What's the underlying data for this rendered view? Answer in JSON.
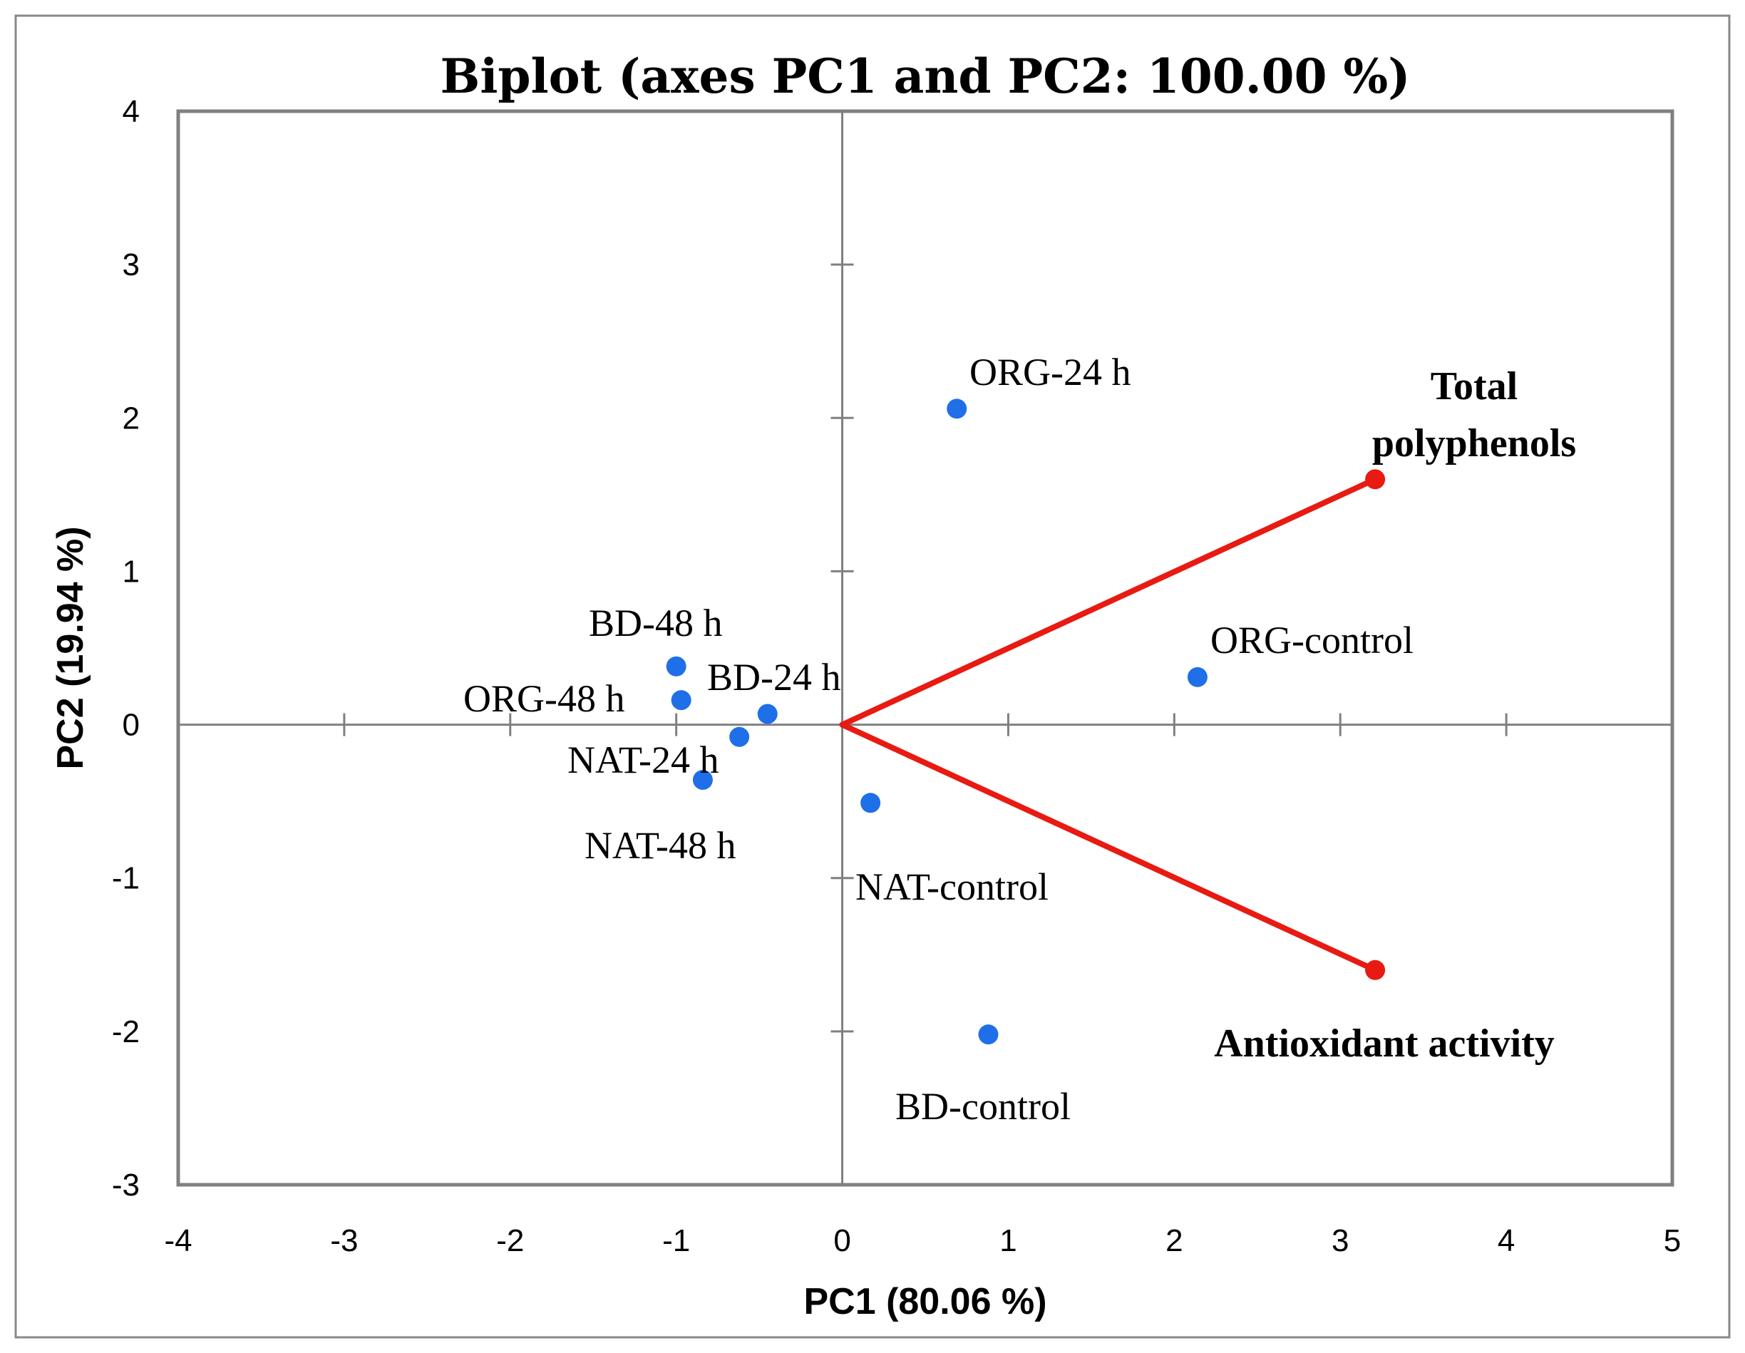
{
  "chart_data": {
    "type": "scatter",
    "title": "Biplot (axes PC1 and PC2: 100.00 %)",
    "xlabel": "PC1 (80.06 %)",
    "ylabel": "PC2 (19.94 %)",
    "xlim": [
      -4,
      5
    ],
    "ylim": [
      -3,
      4
    ],
    "xticks": [
      -4,
      -3,
      -2,
      -1,
      0,
      1,
      2,
      3,
      4,
      5
    ],
    "yticks": [
      -3,
      -2,
      -1,
      0,
      1,
      2,
      3,
      4
    ],
    "grid": false,
    "observations": [
      {
        "label": "ORG-24 h",
        "x": 0.69,
        "y": 2.06
      },
      {
        "label": "ORG-control",
        "x": 2.14,
        "y": 0.31
      },
      {
        "label": "BD-48 h",
        "x": -1.0,
        "y": 0.38
      },
      {
        "label": "ORG-48 h",
        "x": -0.97,
        "y": 0.16
      },
      {
        "label": "BD-24 h",
        "x": -0.45,
        "y": 0.07
      },
      {
        "label": "NAT-24 h",
        "x": -0.62,
        "y": -0.08
      },
      {
        "label": "NAT-48 h",
        "x": -0.84,
        "y": -0.36
      },
      {
        "label": "NAT-control",
        "x": 0.17,
        "y": -0.51
      },
      {
        "label": "BD-control",
        "x": 0.88,
        "y": -2.02
      }
    ],
    "variables": [
      {
        "label_lines": [
          "Total",
          "polyphenols"
        ],
        "x": 3.21,
        "y": 1.6
      },
      {
        "label_lines": [
          "Antioxidant activity"
        ],
        "x": 3.21,
        "y": -1.6
      }
    ],
    "colors": {
      "observation": "#1f6fe8",
      "variable": "#e81a12",
      "axis": "#808080",
      "frame": "#888888"
    }
  }
}
